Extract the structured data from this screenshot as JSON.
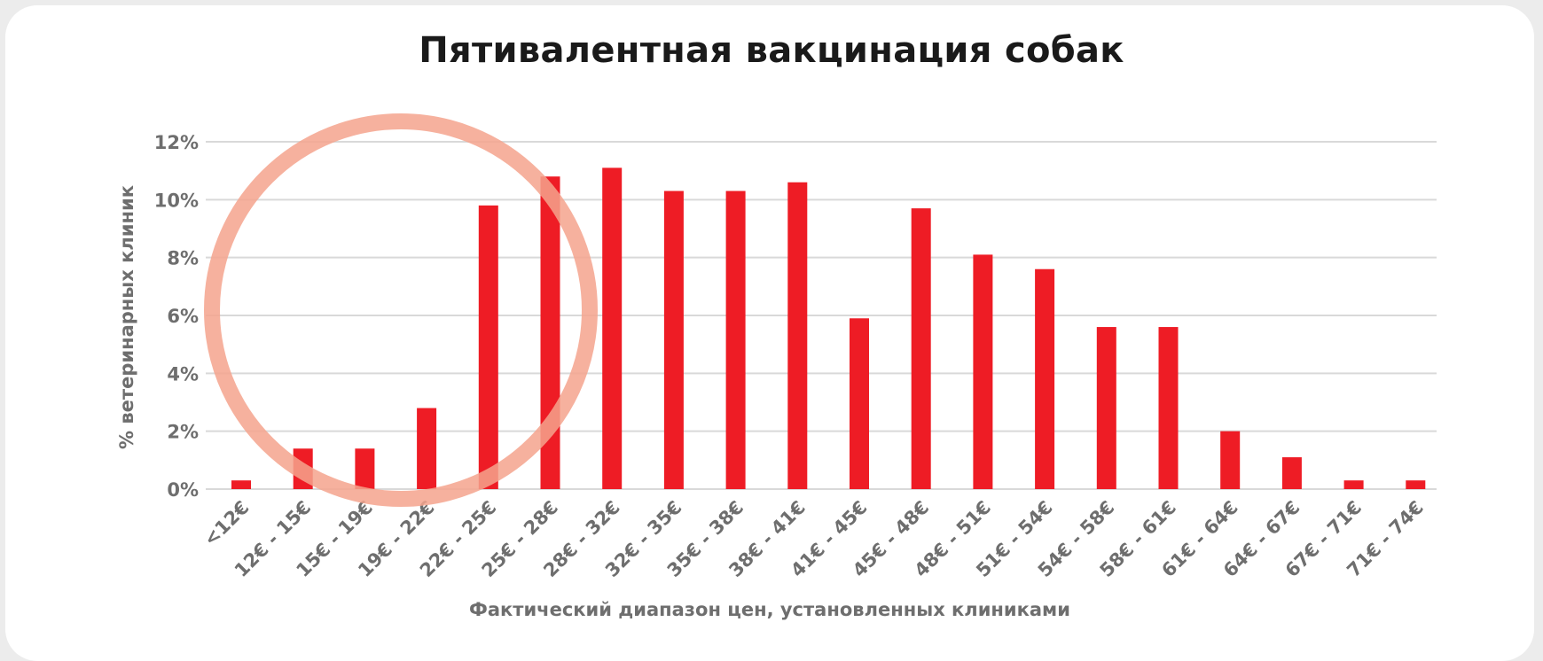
{
  "chart_data": {
    "type": "bar",
    "title": "Пятивалентная вакцинация собак",
    "xlabel": "Фактический диапазон цен, установленных клиниками",
    "ylabel": "% ветеринарных клиник",
    "categories": [
      "<12€",
      "12€ - 15€",
      "15€ - 19€",
      "19€ - 22€",
      "22€ - 25€",
      "25€ - 28€",
      "28€ - 32€",
      "32€ - 35€",
      "35€ - 38€",
      "38€ - 41€",
      "41€ - 45€",
      "45€ - 48€",
      "48€ - 51€",
      "51€ - 54€",
      "54€ - 58€",
      "58€ - 61€",
      "61€ - 64€",
      "64€ - 67€",
      "67€ - 71€",
      "71€ - 74€"
    ],
    "values": [
      0.3,
      1.4,
      1.4,
      2.8,
      9.8,
      10.8,
      11.1,
      10.3,
      10.3,
      10.6,
      5.9,
      9.7,
      8.1,
      7.6,
      5.6,
      5.6,
      2.0,
      1.1,
      0.3,
      0.3
    ],
    "yticks": [
      "0%",
      "2%",
      "4%",
      "6%",
      "8%",
      "10%",
      "12%"
    ],
    "ylim": [
      0,
      12
    ],
    "grid": true,
    "bar_color": "#ee1c25",
    "highlight_color": "#f5a38d",
    "highlight": "circle around the lowest price ranges"
  }
}
